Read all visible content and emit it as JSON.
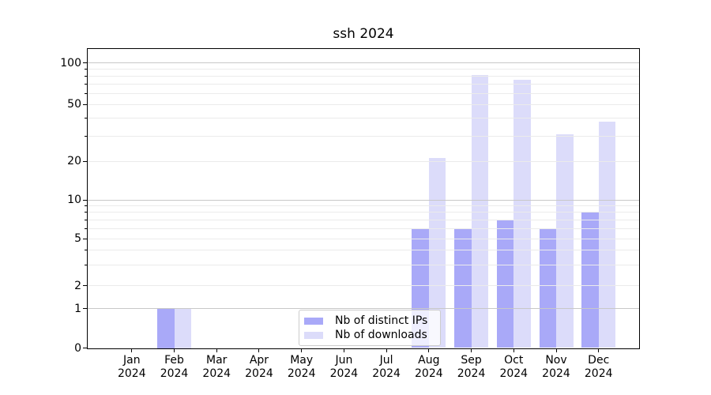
{
  "chart_data": {
    "type": "bar",
    "title": "ssh 2024",
    "categories": [
      "Jan",
      "Feb",
      "Mar",
      "Apr",
      "May",
      "Jun",
      "Jul",
      "Aug",
      "Sep",
      "Oct",
      "Nov",
      "Dec"
    ],
    "year_label": "2024",
    "series": [
      {
        "name": "Nb of distinct IPs",
        "color": "#a9a9f8",
        "values": [
          0,
          1,
          0,
          0,
          0,
          0,
          0,
          6,
          6,
          7,
          6,
          8
        ]
      },
      {
        "name": "Nb of downloads",
        "color": "#dcdcfa",
        "values": [
          0,
          1,
          0,
          0,
          0,
          0,
          0,
          21,
          81,
          75,
          31,
          38
        ]
      }
    ],
    "yscale": "symlog",
    "ylim": [
      0,
      120
    ],
    "yticks": [
      0,
      1,
      2,
      5,
      10,
      20,
      50,
      100
    ],
    "ytick_labels": [
      "0",
      "1",
      "2",
      "5",
      "10",
      "20",
      "50",
      "100"
    ],
    "major_gridlines": [
      1,
      10,
      100
    ],
    "minor_gridlines": [
      2,
      3,
      4,
      5,
      6,
      7,
      8,
      9,
      20,
      30,
      40,
      50,
      60,
      70,
      80,
      90
    ],
    "grid": true,
    "legend_position": "lower center",
    "xlabel": "",
    "ylabel": ""
  }
}
